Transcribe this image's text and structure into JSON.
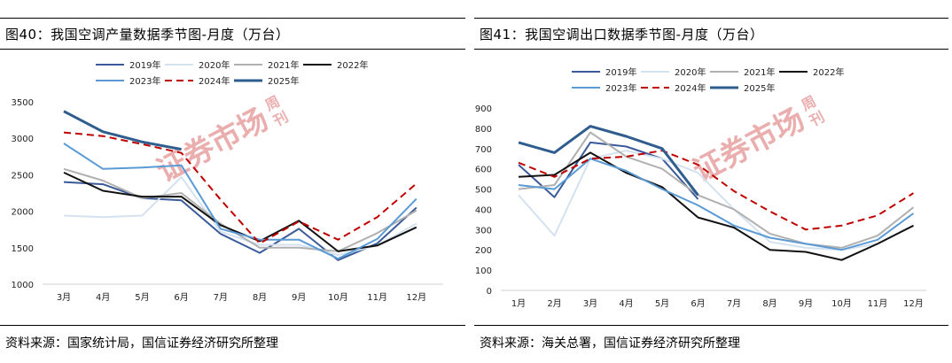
{
  "left": {
    "title": "图40：我国空调产量数据季节图-月度（万台）",
    "source": "资料来源：国家统计局，国信证券经济研究所整理",
    "watermark": {
      "main": "证券市场",
      "small1": "周",
      "small2": "刊"
    }
  },
  "right": {
    "title": "图41：我国空调出口数据季节图-月度（万台）",
    "source": "资料来源：海关总署，国信证券经济研究所整理",
    "watermark": {
      "main": "证券市场",
      "small1": "周",
      "small2": "刊"
    }
  },
  "chart_data": [
    {
      "type": "line",
      "categories": [
        "3月",
        "4月",
        "5月",
        "6月",
        "7月",
        "8月",
        "9月",
        "10月",
        "11月",
        "12月"
      ],
      "ylim": [
        1000,
        3500
      ],
      "yticks": [
        "1000",
        "1500",
        "2000",
        "2500",
        "3000",
        "3500"
      ],
      "grid": false,
      "legend": "top",
      "series": [
        {
          "name": "2019年",
          "color": "#3a5a9a",
          "dash": "",
          "width": 2,
          "values": [
            2400,
            2370,
            2180,
            2150,
            1690,
            1430,
            1760,
            1330,
            1560,
            2050
          ]
        },
        {
          "name": "2020年",
          "color": "#d4e2f0",
          "dash": "",
          "width": 2,
          "values": [
            1940,
            1920,
            1940,
            2470,
            1720,
            1540,
            1540,
            1400,
            1530,
            1830
          ]
        },
        {
          "name": "2021年",
          "color": "#b0b0b0",
          "dash": "",
          "width": 2,
          "values": [
            2580,
            2420,
            2180,
            2250,
            1830,
            1500,
            1500,
            1450,
            1700,
            2010
          ]
        },
        {
          "name": "2022年",
          "color": "#111111",
          "dash": "",
          "width": 2,
          "values": [
            2530,
            2280,
            2200,
            2200,
            1810,
            1590,
            1870,
            1450,
            1530,
            1780
          ]
        },
        {
          "name": "2023年",
          "color": "#5b9bd5",
          "dash": "",
          "width": 2,
          "values": [
            2930,
            2580,
            2600,
            2630,
            1760,
            1610,
            1610,
            1350,
            1620,
            2170
          ]
        },
        {
          "name": "2024年",
          "color": "#c00000",
          "dash": "8,5",
          "width": 2,
          "values": [
            3080,
            3030,
            2920,
            2800,
            2160,
            1560,
            1860,
            1610,
            1920,
            2380
          ]
        },
        {
          "name": "2025年",
          "color": "#2e5d8e",
          "dash": "",
          "width": 3,
          "values": [
            3370,
            3090,
            2950,
            2850,
            null,
            null,
            null,
            null,
            null,
            null
          ]
        }
      ]
    },
    {
      "type": "line",
      "categories": [
        "1月",
        "2月",
        "3月",
        "4月",
        "5月",
        "6月",
        "7月",
        "8月",
        "9月",
        "10月",
        "11月",
        "12月"
      ],
      "ylim": [
        0,
        900
      ],
      "yticks": [
        "0",
        "100",
        "200",
        "300",
        "400",
        "500",
        "600",
        "700",
        "800",
        "900"
      ],
      "grid": false,
      "legend": "top",
      "series": [
        {
          "name": "2019年",
          "color": "#3a5a9a",
          "dash": "",
          "width": 2,
          "values": [
            620,
            460,
            730,
            710,
            650,
            450,
            null,
            null,
            null,
            null,
            null,
            null
          ]
        },
        {
          "name": "2020年",
          "color": "#d4e2f0",
          "dash": "",
          "width": 2,
          "values": [
            470,
            270,
            650,
            690,
            650,
            580,
            400,
            240,
            210,
            200,
            230,
            320
          ]
        },
        {
          "name": "2021年",
          "color": "#b0b0b0",
          "dash": "",
          "width": 2,
          "values": [
            500,
            520,
            780,
            660,
            600,
            470,
            400,
            280,
            230,
            210,
            270,
            410
          ]
        },
        {
          "name": "2022年",
          "color": "#111111",
          "dash": "",
          "width": 2,
          "values": [
            560,
            570,
            680,
            580,
            510,
            360,
            310,
            200,
            190,
            150,
            230,
            320
          ]
        },
        {
          "name": "2023年",
          "color": "#5b9bd5",
          "dash": "",
          "width": 2,
          "values": [
            520,
            500,
            650,
            590,
            500,
            420,
            320,
            260,
            230,
            200,
            250,
            380
          ]
        },
        {
          "name": "2024年",
          "color": "#c00000",
          "dash": "8,5",
          "width": 2,
          "values": [
            630,
            560,
            650,
            660,
            690,
            620,
            490,
            390,
            300,
            320,
            370,
            480
          ]
        },
        {
          "name": "2025年",
          "color": "#2e5d8e",
          "dash": "",
          "width": 3,
          "values": [
            730,
            680,
            810,
            760,
            700,
            470,
            null,
            null,
            null,
            null,
            null,
            null
          ]
        }
      ]
    }
  ]
}
